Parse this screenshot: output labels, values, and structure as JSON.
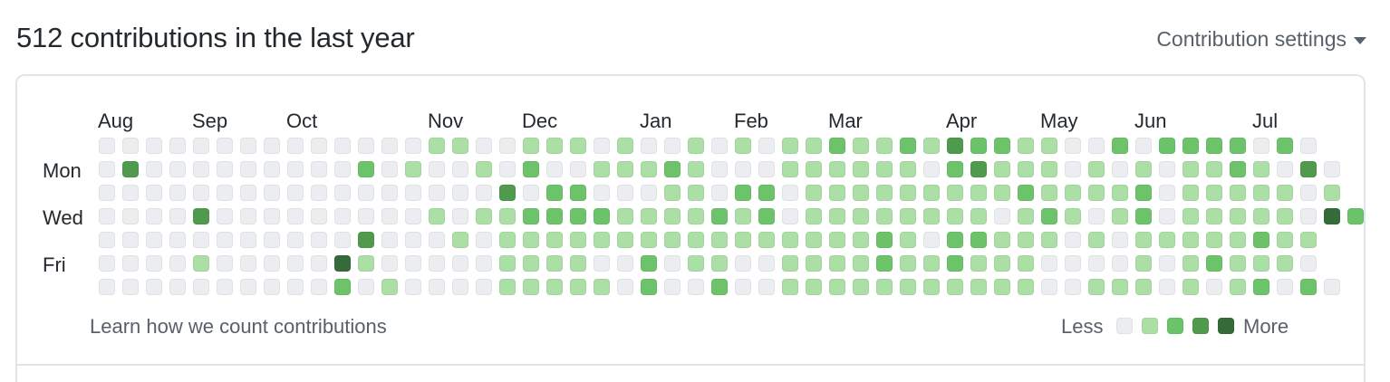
{
  "header": {
    "title": "512 contributions in the last year",
    "settings_label": "Contribution settings"
  },
  "months": [
    "Aug",
    "Sep",
    "Oct",
    "Nov",
    "Dec",
    "Jan",
    "Feb",
    "Mar",
    "Apr",
    "May",
    "Jun",
    "Jul"
  ],
  "month_week_index": [
    0,
    4,
    8,
    14,
    18,
    23,
    27,
    31,
    36,
    40,
    44,
    49
  ],
  "day_labels": [
    {
      "label": "Mon",
      "row": 1
    },
    {
      "label": "Wed",
      "row": 3
    },
    {
      "label": "Fri",
      "row": 5
    }
  ],
  "footer": {
    "learn_link": "Learn how we count contributions",
    "legend_less": "Less",
    "legend_more": "More"
  },
  "colors": {
    "level0_fill": "#ebedf0",
    "level0_border": "#dfe2e5",
    "level1": "#acdfa5",
    "level2": "#6cc36a",
    "level3": "#4f9a4c",
    "level4": "#356b38",
    "border_light": "#e1e4e8"
  },
  "chart_data": {
    "type": "heatmap",
    "rows": 7,
    "levels": [
      0,
      1,
      2,
      3,
      4
    ],
    "grid": [
      [
        0,
        0,
        0,
        0,
        0,
        0,
        0,
        0,
        0,
        0,
        0,
        0,
        0,
        0,
        1,
        1,
        0,
        0,
        1,
        1,
        1,
        0,
        1,
        0,
        0,
        1,
        0,
        1,
        0,
        1,
        1,
        2,
        1,
        1,
        2,
        1,
        3,
        2,
        2,
        1,
        1,
        0,
        0,
        2,
        0,
        2,
        2,
        2,
        2,
        0,
        2,
        0
      ],
      [
        0,
        3,
        0,
        0,
        0,
        0,
        0,
        0,
        0,
        0,
        0,
        2,
        0,
        1,
        0,
        0,
        1,
        0,
        2,
        0,
        0,
        1,
        1,
        1,
        2,
        1,
        0,
        0,
        0,
        1,
        1,
        1,
        1,
        1,
        1,
        0,
        2,
        3,
        1,
        1,
        1,
        0,
        1,
        0,
        1,
        0,
        1,
        1,
        2,
        1,
        0,
        3,
        0
      ],
      [
        0,
        0,
        0,
        0,
        0,
        0,
        0,
        0,
        0,
        0,
        0,
        0,
        0,
        0,
        0,
        0,
        0,
        3,
        0,
        2,
        2,
        0,
        0,
        0,
        1,
        1,
        0,
        2,
        2,
        0,
        1,
        1,
        1,
        1,
        1,
        1,
        1,
        1,
        1,
        2,
        1,
        1,
        1,
        1,
        2,
        0,
        1,
        1,
        1,
        1,
        1,
        0,
        1
      ],
      [
        0,
        0,
        0,
        0,
        3,
        0,
        0,
        0,
        0,
        0,
        0,
        0,
        0,
        0,
        1,
        0,
        1,
        1,
        2,
        2,
        2,
        2,
        1,
        1,
        1,
        1,
        2,
        1,
        2,
        0,
        1,
        1,
        1,
        1,
        1,
        1,
        1,
        1,
        0,
        1,
        2,
        1,
        0,
        1,
        2,
        0,
        1,
        1,
        1,
        1,
        1,
        0,
        4,
        2
      ],
      [
        0,
        0,
        0,
        0,
        0,
        0,
        0,
        0,
        0,
        0,
        0,
        3,
        0,
        0,
        0,
        1,
        0,
        1,
        1,
        1,
        1,
        1,
        1,
        1,
        1,
        1,
        1,
        1,
        1,
        1,
        1,
        1,
        1,
        2,
        1,
        0,
        2,
        2,
        1,
        1,
        1,
        0,
        1,
        0,
        1,
        1,
        1,
        1,
        1,
        2,
        1,
        1
      ],
      [
        0,
        0,
        0,
        0,
        1,
        0,
        0,
        0,
        0,
        0,
        4,
        1,
        0,
        0,
        0,
        0,
        0,
        1,
        1,
        1,
        1,
        0,
        0,
        2,
        0,
        1,
        1,
        0,
        0,
        1,
        1,
        1,
        1,
        2,
        1,
        1,
        2,
        1,
        1,
        1,
        0,
        0,
        0,
        0,
        1,
        0,
        1,
        2,
        1,
        1,
        1,
        0
      ],
      [
        0,
        0,
        0,
        0,
        0,
        0,
        0,
        0,
        0,
        0,
        2,
        0,
        1,
        0,
        0,
        0,
        0,
        1,
        1,
        1,
        1,
        1,
        0,
        2,
        0,
        0,
        2,
        0,
        0,
        1,
        1,
        1,
        1,
        1,
        1,
        1,
        1,
        1,
        1,
        1,
        0,
        0,
        1,
        1,
        1,
        0,
        1,
        0,
        1,
        2,
        0,
        2,
        0
      ]
    ]
  }
}
